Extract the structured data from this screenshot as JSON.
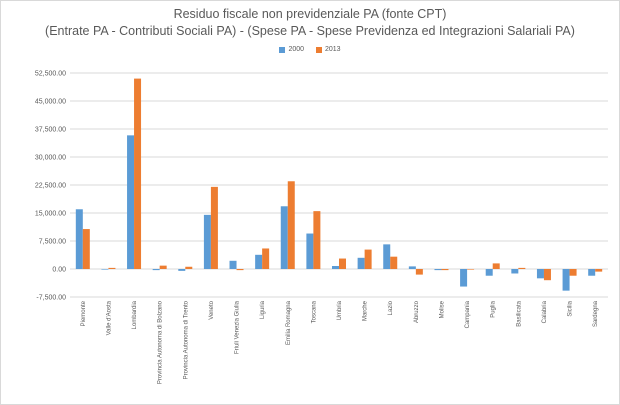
{
  "chart_data": {
    "type": "bar",
    "title": "Residuo fiscale non previdenziale PA (fonte CPT)",
    "subtitle": "(Entrate PA - Contributi Sociali PA) - (Spese PA - Spese Previdenza ed Integrazioni Salariali PA)",
    "categories": [
      "Piemonte",
      "Valle d'Aosta",
      "Lombardia",
      "Provincia Autonoma di Bolzano",
      "Provincia Autonoma di Trento",
      "Veneto",
      "Friuli Venezia Giulia",
      "Liguria",
      "Emilia Romagna",
      "Toscana",
      "Umbria",
      "Marche",
      "Lazio",
      "Abruzzo",
      "Molise",
      "Campania",
      "Puglia",
      "Basilicata",
      "Calabria",
      "Sicilia",
      "Sardegna"
    ],
    "series": [
      {
        "name": "2000",
        "color": "#5b9bd5",
        "values": [
          16000,
          -100,
          35800,
          -300,
          -500,
          14500,
          2200,
          3800,
          16800,
          9500,
          800,
          3000,
          6600,
          700,
          -300,
          -4700,
          -1800,
          -1200,
          -2500,
          -5800,
          -1800
        ]
      },
      {
        "name": "2013",
        "color": "#ed7d31",
        "values": [
          10700,
          300,
          51000,
          900,
          600,
          22000,
          -300,
          5500,
          23500,
          15500,
          2800,
          5200,
          3300,
          -1500,
          -300,
          -100,
          1500,
          300,
          -3000,
          -1800,
          -700
        ]
      }
    ],
    "ylim": [
      -7500,
      52500
    ],
    "yticks": [
      -7500,
      0,
      7500,
      15000,
      22500,
      30000,
      37500,
      45000,
      52500
    ],
    "ytick_labels": [
      "-7,500.00",
      "0.00",
      "7,500.00",
      "15,000.00",
      "22,500.00",
      "30,000.00",
      "37,500.00",
      "45,000.00",
      "52,500.00"
    ],
    "grid": true,
    "legend_position": "top"
  }
}
